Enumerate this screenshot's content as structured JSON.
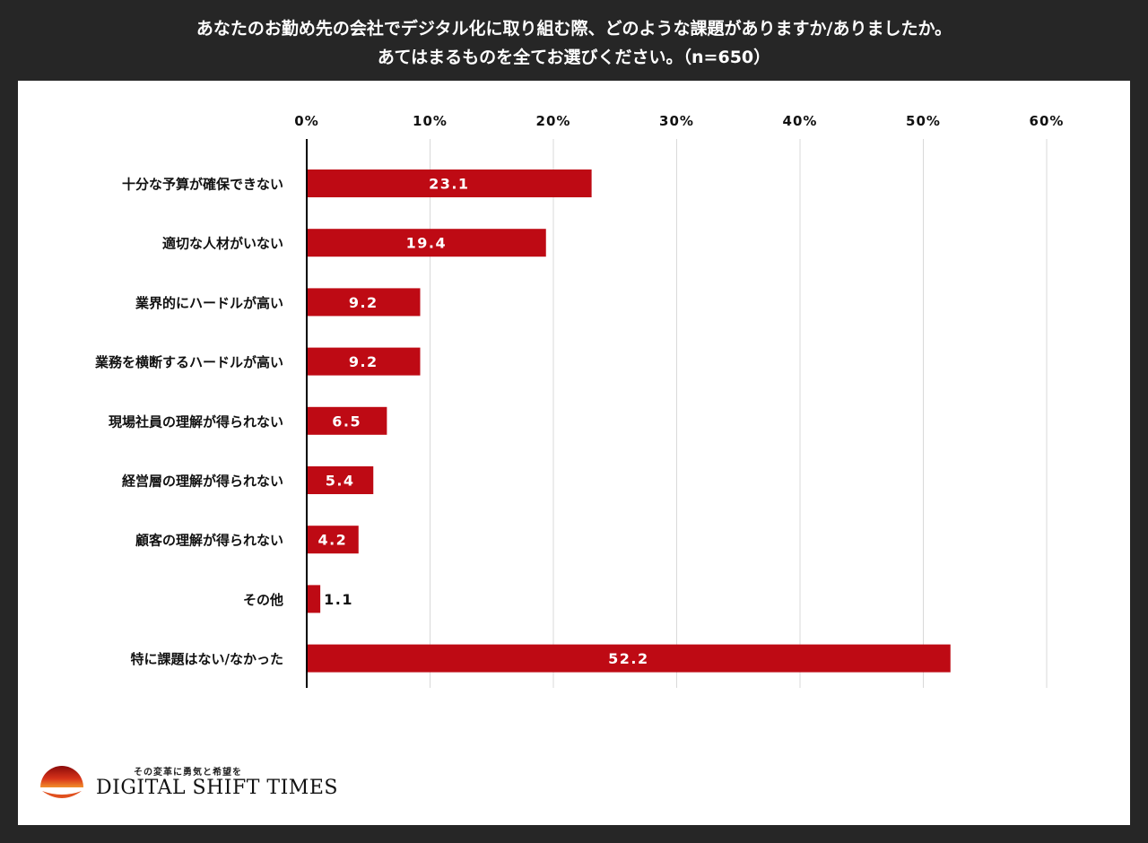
{
  "header": {
    "line1": "あなたのお勤め先の会社でデジタル化に取り組む際、どのような課題がありますか/ありましたか。",
    "line2": "あてはまるものを全てお選びください。（n=650）"
  },
  "logo": {
    "tagline": "その変革に勇気と希望を",
    "name": "DIGITAL SHIFT TIMES"
  },
  "colors": {
    "bar": "#BE0A14",
    "background": "#262626",
    "panel": "#FFFFFF",
    "grid": "#D9D9D9",
    "axis": "#000000"
  },
  "chart_data": {
    "type": "bar",
    "orientation": "horizontal",
    "title": "",
    "xlabel": "",
    "ylabel": "",
    "xlim": [
      0,
      60
    ],
    "x_ticks": [
      "0%",
      "10%",
      "20%",
      "30%",
      "40%",
      "50%",
      "60%"
    ],
    "x_tick_values": [
      0,
      10,
      20,
      30,
      40,
      50,
      60
    ],
    "grid": true,
    "categories": [
      "十分な予算が確保できない",
      "適切な人材がいない",
      "業界的にハードルが高い",
      "業務を横断するハードルが高い",
      "現場社員の理解が得られない",
      "経営層の理解が得られない",
      "顧客の理解が得られない",
      "その他",
      "特に課題はない/なかった"
    ],
    "values": [
      23.1,
      19.4,
      9.2,
      9.2,
      6.5,
      5.4,
      4.2,
      1.1,
      52.2
    ],
    "value_labels": [
      "23.1",
      "19.4",
      "9.2",
      "9.2",
      "6.5",
      "5.4",
      "4.2",
      "1.1",
      "52.2"
    ]
  }
}
